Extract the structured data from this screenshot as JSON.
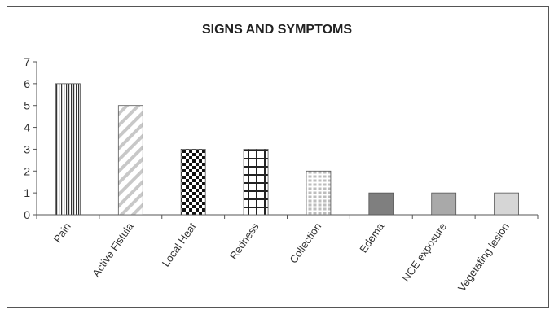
{
  "chart_data": {
    "type": "bar",
    "title": "SIGNS AND SYMPTOMS",
    "xlabel": "",
    "ylabel": "",
    "ylim": [
      0,
      7
    ],
    "yticks": [
      0,
      1,
      2,
      3,
      4,
      5,
      6,
      7
    ],
    "grid": false,
    "legend": "none",
    "categories": [
      "Pain",
      "Active Fistula",
      "Local Heat",
      "Redness",
      "Collection",
      "Edema",
      "NCE exposure",
      "Vegetating lesion"
    ],
    "values": [
      6,
      5,
      3,
      3,
      2,
      1,
      1,
      1
    ],
    "fills": [
      "vertical-stripes",
      "diagonal-hatch",
      "checkerboard",
      "grid",
      "brick-dots",
      "solid-dark-gray",
      "solid-medium-gray",
      "solid-light-gray"
    ],
    "colors": {
      "dark": "#7f7f7f",
      "medium": "#a9a9a9",
      "light": "#d6d6d6",
      "ink": "#222222"
    }
  }
}
